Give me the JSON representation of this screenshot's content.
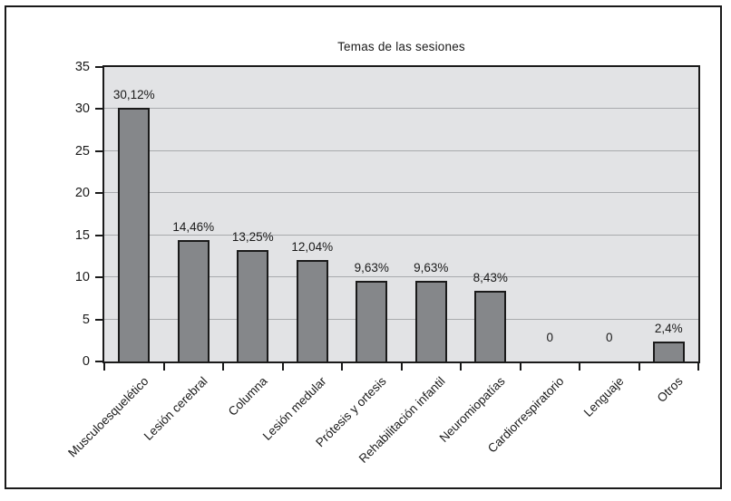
{
  "figure": {
    "background": "#ffffff",
    "border_color": "#1a1a1a"
  },
  "chart_data": {
    "type": "bar",
    "title": "Temas de las sesiones",
    "categories": [
      "Musculoesquelético",
      "Lesión cerebral",
      "Columna",
      "Lesión medular",
      "Prótesis y ortesis",
      "Rehabilitación infantil",
      "Neuromiopatías",
      "Cardiorrespiratorio",
      "Lenguaje",
      "Otros"
    ],
    "values": [
      30.12,
      14.46,
      13.25,
      12.04,
      9.63,
      9.63,
      8.43,
      0,
      0,
      2.4
    ],
    "value_labels": [
      "30,12%",
      "14,46%",
      "13,25%",
      "12,04%",
      "9,63%",
      "9,63%",
      "8,43%",
      "0",
      "0",
      "2,4%"
    ],
    "xlabel": "",
    "ylabel": "",
    "ylim": [
      0,
      35
    ],
    "yticks": [
      0,
      5,
      10,
      15,
      20,
      25,
      30,
      35
    ],
    "grid": "horizontal",
    "legend": "none",
    "x_label_rotation_deg": 45,
    "colors": {
      "bar_fill": "#85878a",
      "bar_border": "#1a1a1a",
      "plot_background": "#e2e3e5",
      "gridline": "#a8aaad",
      "axis": "#1a1a1a",
      "text": "#1a1a1a",
      "figure_background": "#ffffff"
    }
  }
}
